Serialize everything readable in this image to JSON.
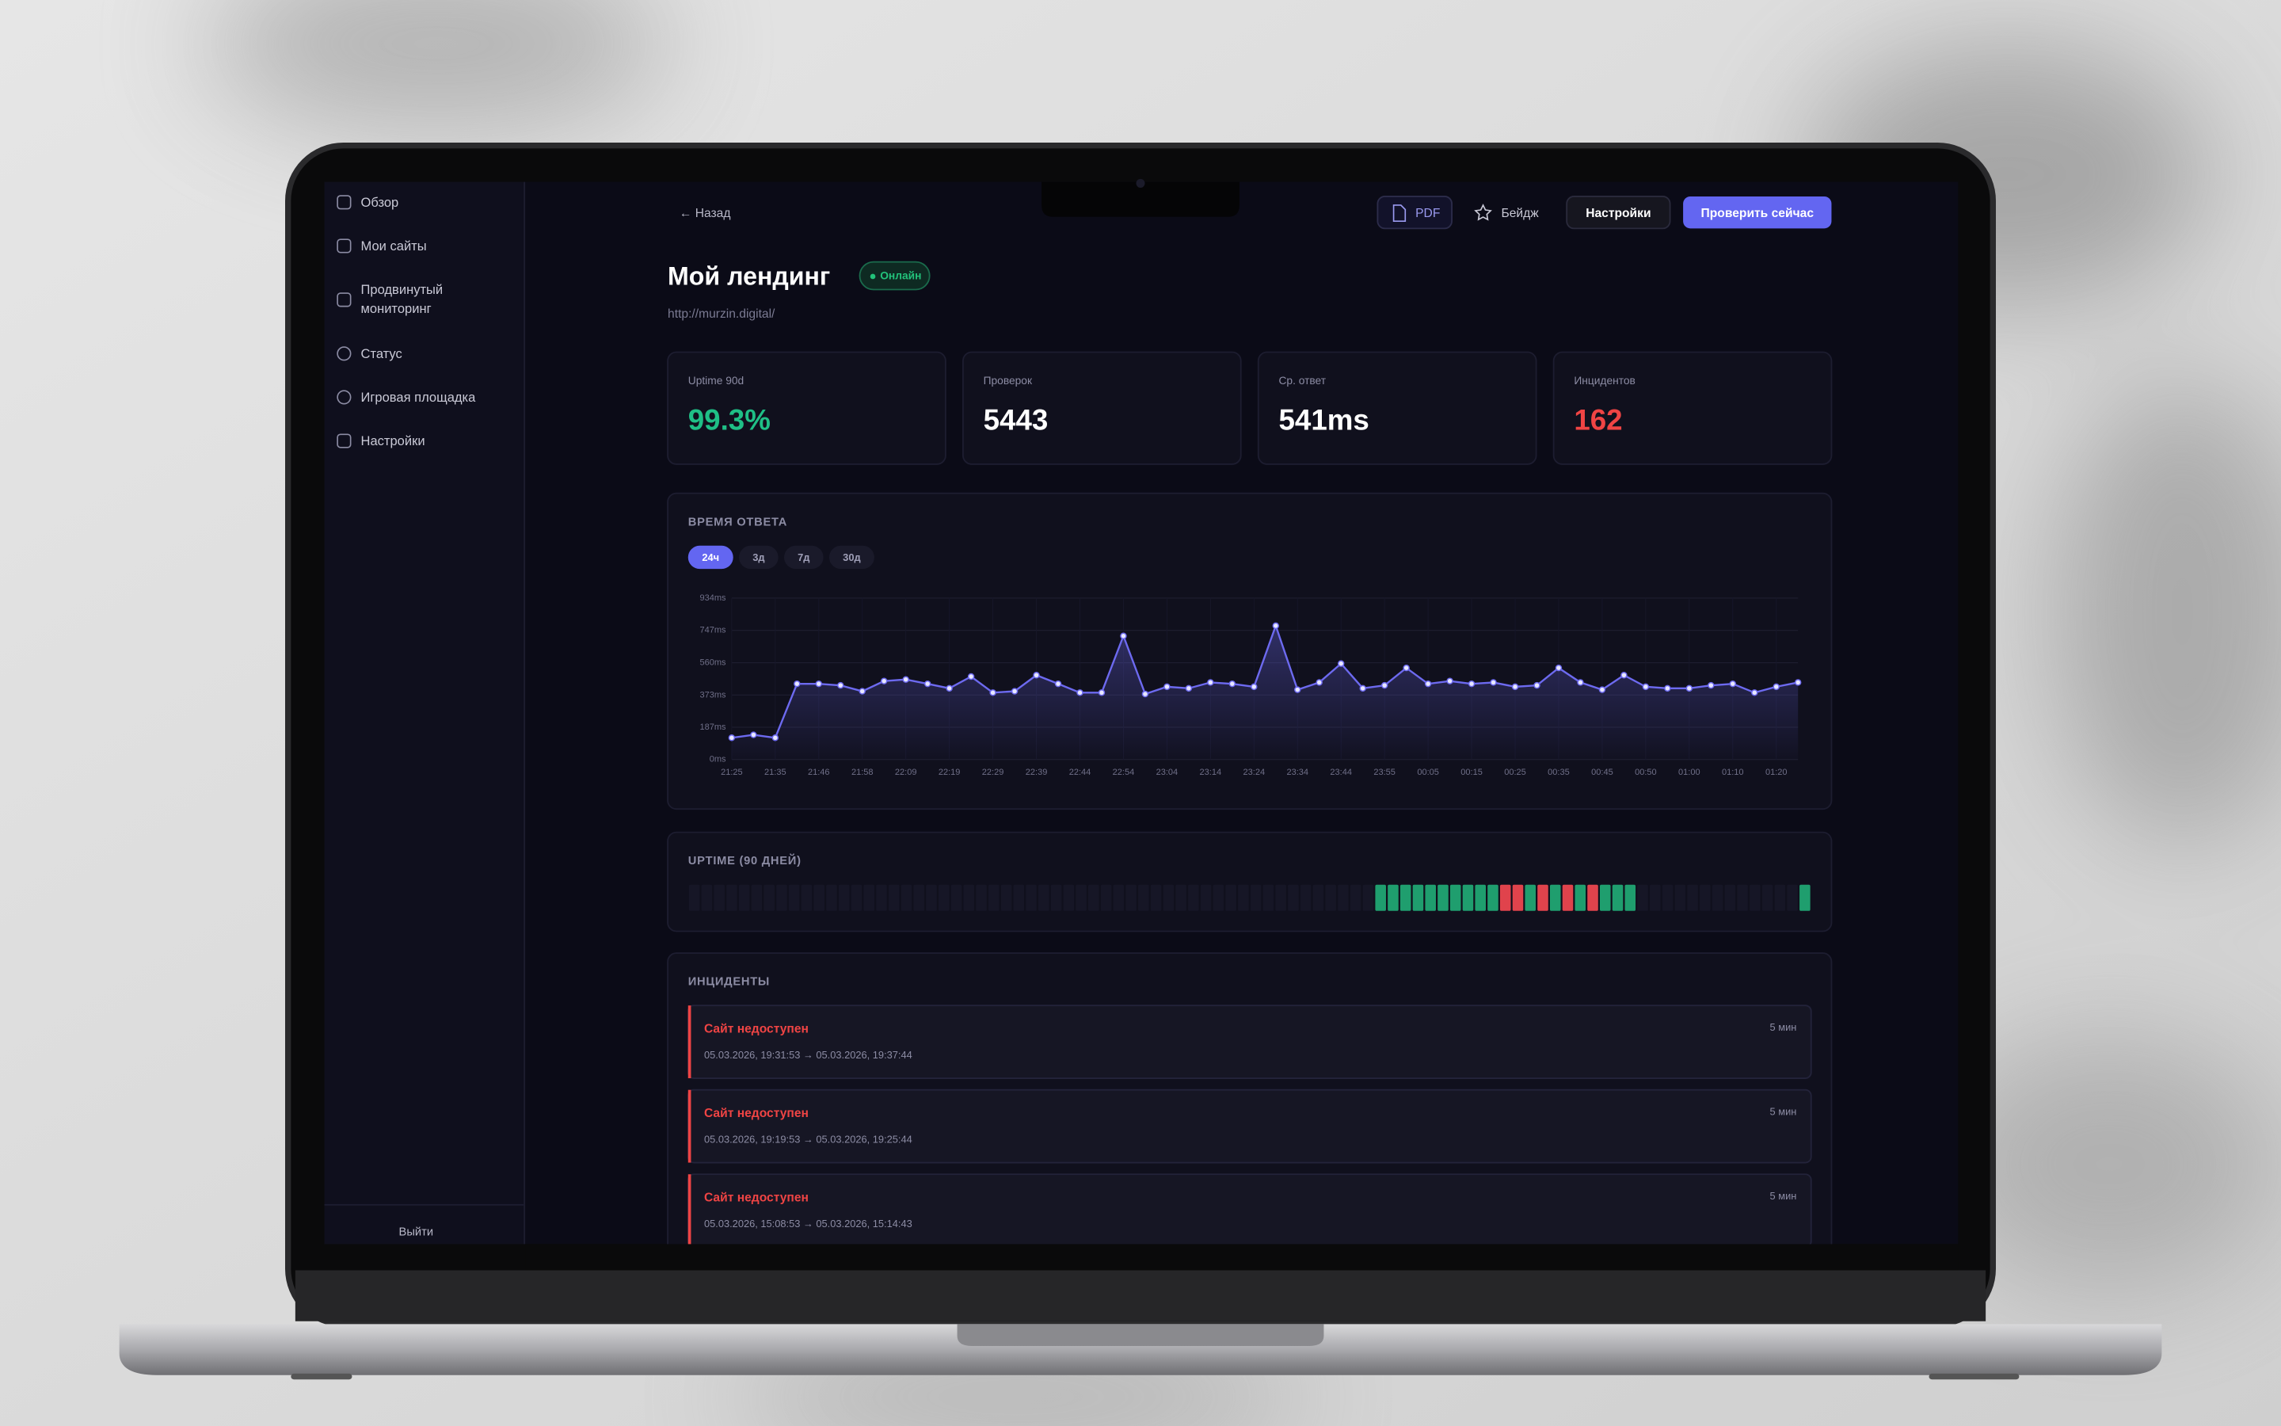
{
  "sidebar": {
    "items": [
      "Обзор",
      "Мои сайты",
      "Продвинутый мониторинг",
      "Статус",
      "Игровая площадка",
      "Настройки"
    ],
    "logout": "Выйти"
  },
  "header": {
    "back": "← Назад",
    "pdf": "PDF",
    "badge": "Бейдж",
    "settings": "Настройки",
    "check": "Проверить сейчас"
  },
  "site": {
    "title": "Мой лендинг",
    "status": "Онлайн",
    "url": "http://murzin.digital/"
  },
  "stats": [
    {
      "label": "Uptime 90d",
      "value": "99.3%"
    },
    {
      "label": "Проверок",
      "value": 5443
    },
    {
      "label": "Ср. ответ",
      "value": "541ms"
    },
    {
      "label": "Инцидентов",
      "value": 162
    }
  ],
  "chart_data": {
    "type": "line",
    "title": "ВРЕМЯ ОТВЕТА",
    "ranges": [
      "24ч",
      "3д",
      "7д",
      "30д"
    ],
    "categories": [
      "21:25",
      null,
      "21:35",
      null,
      "21:46",
      null,
      "21:58",
      null,
      "22:09",
      null,
      "22:19",
      null,
      "22:29",
      null,
      "22:39",
      null,
      "22:44",
      null,
      "22:54",
      null,
      "23:04",
      null,
      "23:14",
      null,
      "23:24",
      null,
      "23:34",
      null,
      "23:44",
      null,
      "23:55",
      null,
      "00:05",
      null,
      "00:15",
      null,
      "00:25",
      null,
      "00:35",
      null,
      "00:45",
      null,
      "00:50",
      null,
      "01:00",
      null,
      "01:10",
      null,
      "01:20",
      null
    ],
    "values": [
      126,
      143,
      126,
      438,
      438,
      429,
      395,
      454,
      463,
      438,
      412,
      480,
      387,
      395,
      488,
      438,
      387,
      387,
      715,
      379,
      421,
      412,
      446,
      438,
      421,
      774,
      404,
      446,
      555,
      412,
      429,
      530,
      438,
      454,
      438,
      446,
      421,
      429,
      530,
      446,
      404,
      488,
      421,
      412,
      412,
      429,
      438,
      387,
      421,
      446
    ],
    "color": "#6d6af0",
    "ylim": [
      0,
      934
    ],
    "yticks": [
      {
        "value": 0,
        "label": "0ms"
      },
      {
        "value": 187,
        "label": "187ms"
      },
      {
        "value": 373,
        "label": "373ms"
      },
      {
        "value": 560,
        "label": "560ms"
      },
      {
        "value": 747,
        "label": "747ms"
      },
      {
        "value": 934,
        "label": "934ms"
      }
    ],
    "grid": true
  },
  "uptime": {
    "title": "UPTIME (90 ДНЕЙ)",
    "days": [
      null,
      null,
      null,
      null,
      null,
      null,
      null,
      null,
      null,
      null,
      null,
      null,
      null,
      null,
      null,
      null,
      null,
      null,
      null,
      null,
      null,
      null,
      null,
      null,
      null,
      null,
      null,
      null,
      null,
      null,
      null,
      null,
      null,
      null,
      null,
      null,
      null,
      null,
      null,
      null,
      null,
      null,
      null,
      null,
      null,
      null,
      null,
      null,
      null,
      null,
      null,
      null,
      null,
      null,
      null,
      1,
      1,
      1,
      1,
      1,
      1,
      1,
      1,
      1,
      1,
      0,
      0,
      1,
      0,
      1,
      0,
      1,
      0,
      1,
      1,
      1,
      null,
      null,
      null,
      null,
      null,
      null,
      null,
      null,
      null,
      null,
      null,
      null,
      null,
      1
    ]
  },
  "incidents": {
    "title": "ИНЦИДЕНТЫ",
    "items": [
      {
        "title": "Сайт недоступен",
        "period": "05.03.2026, 19:31:53 → 05.03.2026, 19:37:44",
        "duration": "5 мин"
      },
      {
        "title": "Сайт недоступен",
        "period": "05.03.2026, 19:19:53 → 05.03.2026, 19:25:44",
        "duration": "5 мин"
      },
      {
        "title": "Сайт недоступен",
        "period": "05.03.2026, 15:08:53 → 05.03.2026, 15:14:43",
        "duration": "5 мин"
      }
    ]
  }
}
